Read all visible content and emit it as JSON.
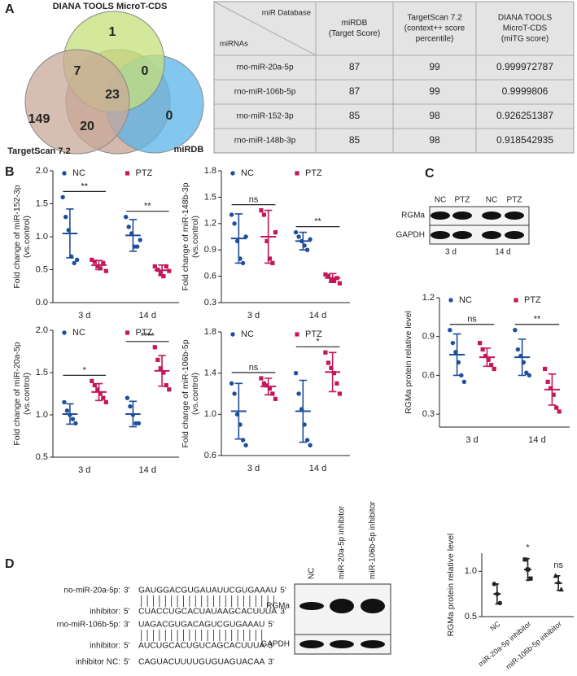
{
  "panel_labels": [
    "A",
    "B",
    "C",
    "D"
  ],
  "venn": {
    "sets": [
      "DIANA TOOLS MicroT-CDS",
      "TargetScan 7.2",
      "miRDB"
    ],
    "regions": [
      1,
      7,
      0,
      23,
      149,
      20,
      0
    ]
  },
  "table": {
    "corner": [
      "miR Database",
      "miRNAs"
    ],
    "columns": [
      [
        "miRDB",
        "(Target Score)"
      ],
      [
        "TargetScan 7.2",
        "(context++ score",
        "percentile)"
      ],
      [
        "DIANA TOOLS",
        "MicroT-CDS",
        "(miTG score)"
      ]
    ],
    "rows": [
      [
        "rno-miR-20a-5p",
        87,
        99,
        0.999972787
      ],
      [
        "rno-miR-106b-5p",
        87,
        99,
        0.9999806
      ],
      [
        "rno-miR-152-3p",
        85,
        98,
        0.926251387
      ],
      [
        "rno-miR-148b-3p",
        85,
        98,
        0.918542935
      ]
    ]
  },
  "blot_c": {
    "lanes": [
      "NC",
      "PTZ",
      "NC",
      "PTZ"
    ],
    "groups": [
      "3 d",
      "14 d"
    ],
    "proteins": [
      "RGMa",
      "GAPDH"
    ]
  },
  "blot_d": {
    "lanes": [
      "NC",
      "miR-20a-5p inhibitor",
      "miR-106b-5p inhibitor"
    ],
    "proteins": [
      "RGMa",
      "GAPDH"
    ]
  },
  "sequences": [
    {
      "label": "no-miR-20a-5p:",
      "left": "3'",
      "seq": "GAUGGACGUGAUAUUCGUGAAAU",
      "right": "5'"
    },
    {
      "label": "inhibitor:",
      "left": "5'",
      "seq": "CUACCUGCACUAUAAGCACUUUA",
      "right": "3'"
    },
    {
      "label": "rno-miR-106b-5p:",
      "left": "3'",
      "seq": "UAGACGUGACAGUCGUGAAAU",
      "right": "5'"
    },
    {
      "label": "inhibitor:",
      "left": "5'",
      "seq": "AUCUGCACUGUCAGCACUUUA",
      "right": "3'"
    },
    {
      "label": "inhibitor NC:",
      "left": "5'",
      "seq": "CAGUACUUUUGUGUAGUACAA",
      "right": "3'"
    }
  ],
  "chart_data": [
    {
      "type": "dot",
      "ylabel": [
        "Fold change of miR-152-3p",
        "(vs.control)"
      ],
      "categories": [
        "3 d",
        "14 d"
      ],
      "ylim": [
        0,
        2
      ],
      "yticks": [
        {
          "value": 0,
          "label": "0.0"
        },
        0.5,
        {
          "value": 1,
          "label": "1.0"
        },
        1.5,
        {
          "value": 2,
          "label": "2.0"
        }
      ],
      "significance": [
        "**",
        "**"
      ],
      "sig_lines": true,
      "series": [
        {
          "name": "NC",
          "color": "#1f4e9c",
          "marker": "circle",
          "values": [
            1.05,
            1.02
          ],
          "errors": [
            0.37,
            0.24
          ],
          "points": [
            [
              1.6,
              1.3,
              1.1,
              0.7,
              0.6,
              0.65
            ],
            [
              1.3,
              1.15,
              1.05,
              0.85,
              0.85,
              0.95
            ]
          ]
        },
        {
          "name": "PTZ",
          "color": "#c2185b",
          "marker": "square",
          "values": [
            0.57,
            0.49
          ],
          "errors": [
            0.07,
            0.08
          ],
          "points": [
            [
              0.65,
              0.62,
              0.55,
              0.52,
              0.6,
              0.48
            ],
            [
              0.55,
              0.5,
              0.45,
              0.4,
              0.55,
              0.48
            ]
          ]
        }
      ]
    },
    {
      "type": "dot",
      "ylabel": [
        "Fold change of miR-148b-3p",
        "(vs.control)"
      ],
      "categories": [
        "3 d",
        "14 d"
      ],
      "ylim": [
        0.3,
        1.8
      ],
      "yticks": [
        0.3,
        0.6,
        0.9,
        1.2,
        1.5,
        1.8
      ],
      "significance": [
        "ns",
        "**"
      ],
      "sig_lines": true,
      "series": [
        {
          "name": "NC",
          "color": "#1f4e9c",
          "marker": "circle",
          "values": [
            1.03,
            1.0
          ],
          "errors": [
            0.28,
            0.1
          ],
          "points": [
            [
              1.3,
              1.2,
              1.0,
              0.8,
              0.75,
              1.05
            ],
            [
              1.1,
              1.05,
              1.0,
              0.95,
              0.9,
              1.02
            ]
          ]
        },
        {
          "name": "PTZ",
          "color": "#c2185b",
          "marker": "square",
          "values": [
            1.05,
            0.58
          ],
          "errors": [
            0.3,
            0.05
          ],
          "points": [
            [
              1.35,
              1.3,
              1.0,
              0.8,
              0.75,
              1.1
            ],
            [
              0.62,
              0.6,
              0.55,
              0.55,
              0.58,
              0.52
            ]
          ]
        }
      ]
    },
    {
      "type": "dot",
      "ylabel": [
        "Fold change of miR-20a-5p",
        "(vs.control)"
      ],
      "categories": [
        "3 d",
        "14 d"
      ],
      "ylim": [
        0.5,
        2
      ],
      "yticks": [
        0.5,
        {
          "value": 1,
          "label": "1.0"
        },
        1.5,
        {
          "value": 2,
          "label": "2.0"
        }
      ],
      "significance": [
        "*",
        "****"
      ],
      "sig_lines": true,
      "series": [
        {
          "name": "NC",
          "color": "#1f4e9c",
          "marker": "circle",
          "values": [
            1.01,
            1.01
          ],
          "errors": [
            0.12,
            0.15
          ],
          "points": [
            [
              1.15,
              1.05,
              1.0,
              0.95,
              0.9
            ],
            [
              1.2,
              1.1,
              1.0,
              0.9,
              0.9
            ]
          ]
        },
        {
          "name": "PTZ",
          "color": "#c2185b",
          "marker": "square",
          "values": [
            1.27,
            1.52
          ],
          "errors": [
            0.1,
            0.18
          ],
          "points": [
            [
              1.4,
              1.35,
              1.3,
              1.25,
              1.2,
              1.15
            ],
            [
              1.8,
              1.65,
              1.55,
              1.5,
              1.35,
              1.3
            ]
          ]
        }
      ]
    },
    {
      "type": "dot",
      "ylabel": [
        "Fold change of miR-106b-5p",
        "(vs.control)"
      ],
      "categories": [
        "3 d",
        "14 d"
      ],
      "ylim": [
        0.6,
        1.8
      ],
      "yticks": [
        0.6,
        {
          "value": 1,
          "label": "1.0"
        },
        1.4,
        1.8
      ],
      "significance": [
        "ns",
        "*"
      ],
      "sig_lines": true,
      "series": [
        {
          "name": "NC",
          "color": "#1f4e9c",
          "marker": "circle",
          "values": [
            1.03,
            1.03
          ],
          "errors": [
            0.27,
            0.3
          ],
          "points": [
            [
              1.3,
              1.2,
              1.0,
              0.9,
              0.75,
              0.7
            ],
            [
              1.4,
              1.2,
              1.05,
              0.9,
              0.75,
              0.7
            ]
          ]
        },
        {
          "name": "PTZ",
          "color": "#c2185b",
          "marker": "square",
          "values": [
            1.27,
            1.41
          ],
          "errors": [
            0.08,
            0.19
          ],
          "points": [
            [
              1.35,
              1.3,
              1.28,
              1.25,
              1.2,
              1.15
            ],
            [
              1.6,
              1.5,
              1.45,
              1.4,
              1.3,
              1.2
            ]
          ]
        }
      ]
    },
    {
      "type": "dot",
      "ylabel": [
        "RGMa protein relative level"
      ],
      "categories": [
        "3 d",
        "14 d"
      ],
      "ylim": [
        0.2,
        1.2
      ],
      "yticks": [
        0.3,
        0.6,
        0.9,
        1.2
      ],
      "significance": [
        "ns",
        "**"
      ],
      "sig_lines": true,
      "series": [
        {
          "name": "NC",
          "color": "#1f4e9c",
          "marker": "circle",
          "values": [
            0.76,
            0.74
          ],
          "errors": [
            0.16,
            0.14
          ],
          "points": [
            [
              0.95,
              0.85,
              0.78,
              0.7,
              0.6,
              0.55
            ],
            [
              0.95,
              0.8,
              0.75,
              0.7,
              0.62,
              0.6
            ]
          ]
        },
        {
          "name": "PTZ",
          "color": "#c2185b",
          "marker": "square",
          "values": [
            0.74,
            0.49
          ],
          "errors": [
            0.07,
            0.12
          ],
          "points": [
            [
              0.85,
              0.8,
              0.75,
              0.72,
              0.68,
              0.65
            ],
            [
              0.65,
              0.55,
              0.5,
              0.45,
              0.35,
              0.32
            ]
          ]
        }
      ]
    },
    {
      "type": "dot",
      "ylabel": [
        "RGMa protein relative level"
      ],
      "categories": [
        "NC",
        "miR-20a-5p inhibitor",
        "miR-106b-5p inhibitor"
      ],
      "ylim": [
        0.5,
        1.2
      ],
      "yticks": [
        0.5,
        {
          "value": 1,
          "label": "1.0"
        }
      ],
      "significance": [
        null,
        "*",
        "ns"
      ],
      "sig_lines": false,
      "series": [
        {
          "color": "#222222",
          "marker": [
            "circle",
            "square",
            "triangle"
          ],
          "values": [
            0.75,
            1.02,
            0.87
          ],
          "errors": [
            0.11,
            0.12,
            0.08
          ],
          "points": [
            [
              0.86,
              0.75,
              0.65
            ],
            [
              1.13,
              1.02,
              0.92
            ],
            [
              0.95,
              0.88,
              0.8
            ]
          ]
        }
      ]
    }
  ]
}
